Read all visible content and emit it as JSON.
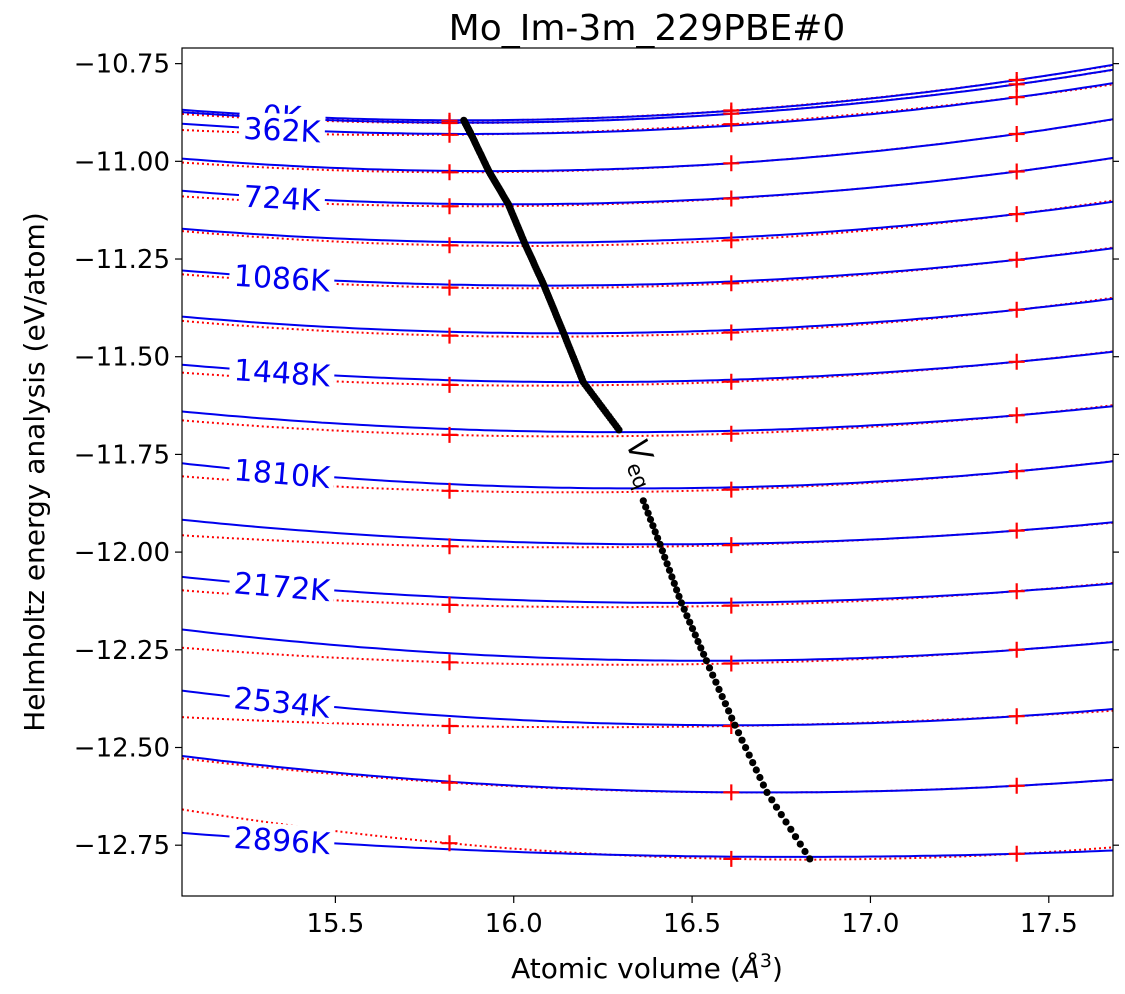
{
  "chart_data": {
    "type": "line",
    "title": "Mo_Im-3m_229PBE#0",
    "xlabel": "Atomic volume (",
    "xlabel_symbol": "Å",
    "xlabel_exp": "3",
    "xlabel_close": ")",
    "ylabel": "Helmholtz energy analysis (eV/atom)",
    "xlim": [
      15.07,
      17.68
    ],
    "ylim": [
      -12.88,
      -10.71
    ],
    "xticks": [
      15.5,
      16.0,
      16.5,
      17.0,
      17.5
    ],
    "xtick_labels": [
      "15.5",
      "16.0",
      "16.5",
      "17.0",
      "17.5"
    ],
    "yticks": [
      -10.75,
      -11.0,
      -11.25,
      -11.5,
      -11.75,
      -12.0,
      -12.25,
      -12.5,
      -12.75
    ],
    "ytick_labels": [
      "−10.75",
      "−11.00",
      "−11.25",
      "−11.50",
      "−11.75",
      "−12.00",
      "−12.25",
      "−12.50",
      "−12.75"
    ],
    "grid": false,
    "data_volumes": [
      15.82,
      16.61,
      17.41
    ],
    "curves": [
      {
        "label": "0K",
        "v0": 15.86,
        "e0": -10.895,
        "e_at_data": [
          -10.896,
          -10.87,
          -10.792
        ]
      },
      {
        "label": "",
        "v0": 15.875,
        "e0": -10.901,
        "e_at_data": [
          -10.902,
          -10.878,
          -10.803
        ]
      },
      {
        "label": "362K",
        "v0": 15.88,
        "e0": -10.93,
        "e_at_data": [
          -10.932,
          -10.905,
          -10.836
        ]
      },
      {
        "label": "",
        "v0": 15.93,
        "e0": -11.025,
        "e_at_data": [
          -11.028,
          -11.005,
          -10.93
        ]
      },
      {
        "label": "724K",
        "v0": 15.985,
        "e0": -11.11,
        "e_at_data": [
          -11.115,
          -11.095,
          -11.026
        ]
      },
      {
        "label": "",
        "v0": 16.03,
        "e0": -11.208,
        "e_at_data": [
          -11.215,
          -11.202,
          -11.135
        ]
      },
      {
        "label": "1086K",
        "v0": 16.085,
        "e0": -11.318,
        "e_at_data": [
          -11.323,
          -11.312,
          -11.252
        ]
      },
      {
        "label": "",
        "v0": 16.14,
        "e0": -11.44,
        "e_at_data": [
          -11.446,
          -11.438,
          -11.38
        ]
      },
      {
        "label": "1448K",
        "v0": 16.195,
        "e0": -11.565,
        "e_at_data": [
          -11.572,
          -11.564,
          -11.513
        ]
      },
      {
        "label": "",
        "v0": 16.3,
        "e0": -11.693,
        "e_at_data": [
          -11.7,
          -11.697,
          -11.65
        ]
      },
      {
        "label": "1810K",
        "v0": 16.35,
        "e0": -11.837,
        "e_at_data": [
          -11.843,
          -11.84,
          -11.793
        ]
      },
      {
        "label": "",
        "v0": 16.41,
        "e0": -11.98,
        "e_at_data": [
          -11.985,
          -11.982,
          -11.945
        ]
      },
      {
        "label": "2172K",
        "v0": 16.47,
        "e0": -12.13,
        "e_at_data": [
          -12.135,
          -12.137,
          -12.1
        ]
      },
      {
        "label": "",
        "v0": 16.54,
        "e0": -12.278,
        "e_at_data": [
          -12.282,
          -12.285,
          -12.25
        ]
      },
      {
        "label": "2534K",
        "v0": 16.62,
        "e0": -12.443,
        "e_at_data": [
          -12.445,
          -12.445,
          -12.42
        ]
      },
      {
        "label": "",
        "v0": 16.71,
        "e0": -12.615,
        "e_at_data": [
          -12.59,
          -12.615,
          -12.598
        ]
      },
      {
        "label": "2896K",
        "v0": 16.79,
        "e0": -12.78,
        "e_at_data": [
          -12.745,
          -12.785,
          -12.772
        ]
      }
    ],
    "veq_label": "V",
    "veq_sub": "eq",
    "veq_curve": {
      "x": [
        15.86,
        15.88,
        15.93,
        15.985,
        16.03,
        16.085,
        16.14,
        16.195,
        16.3,
        16.35,
        16.41,
        16.47,
        16.54,
        16.62,
        16.71,
        16.83
      ],
      "y": [
        -10.895,
        -10.93,
        -11.025,
        -11.11,
        -11.208,
        -11.318,
        -11.44,
        -11.565,
        -11.693,
        -11.837,
        -11.98,
        -12.13,
        -12.278,
        -12.443,
        -12.615,
        -12.785
      ]
    },
    "colors": {
      "fit": "#0000ee",
      "data_fit": "#ff0000",
      "data_marker": "#ff0000",
      "veq": "#000000"
    }
  }
}
